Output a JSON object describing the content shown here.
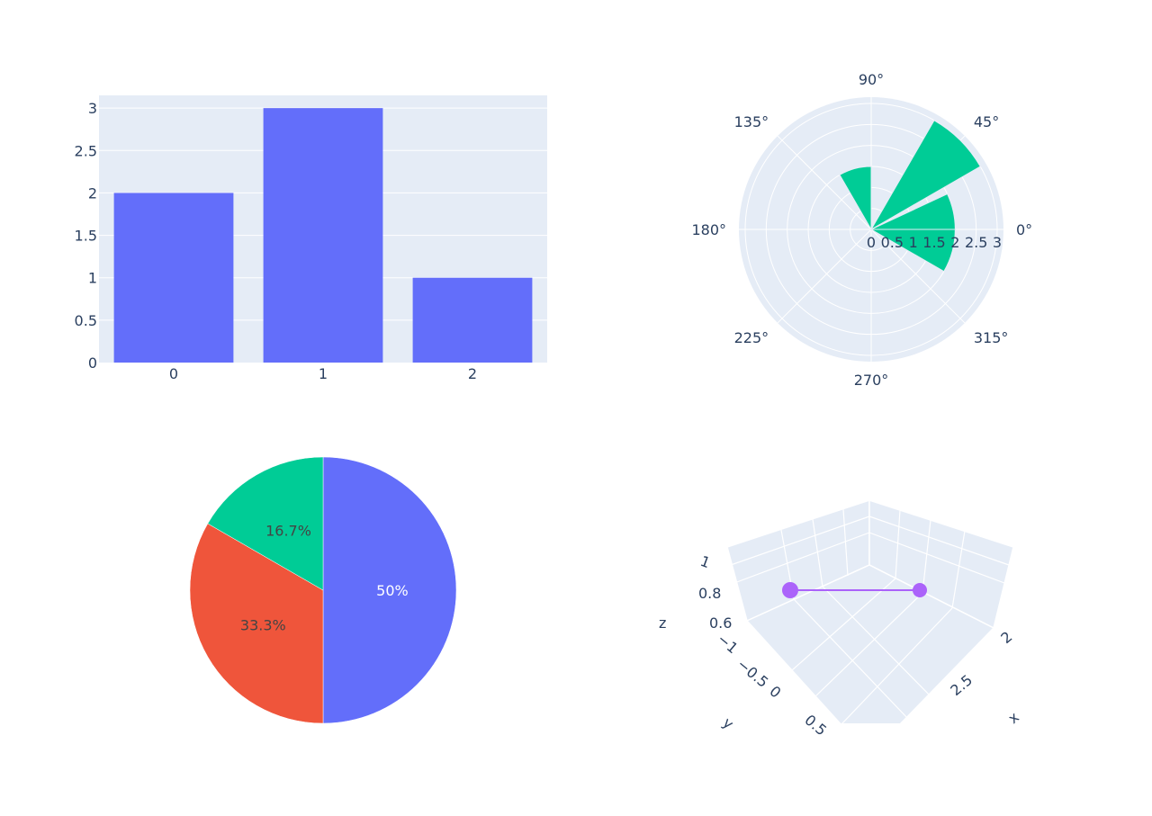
{
  "chart_data": [
    {
      "type": "bar",
      "categories": [
        "0",
        "1",
        "2"
      ],
      "values": [
        2,
        3,
        1
      ],
      "ylim": [
        0,
        3.15
      ],
      "yticks": [
        0,
        0.5,
        1,
        1.5,
        2,
        2.5,
        3
      ],
      "ytick_labels": [
        "0",
        "0.5",
        "1",
        "1.5",
        "2",
        "2.5",
        "3"
      ],
      "grid": true,
      "color": "#636efa"
    },
    {
      "type": "barpolar",
      "r": [
        3,
        2,
        1.5,
        2
      ],
      "theta": [
        45,
        10,
        105,
        345
      ],
      "width_deg": 30,
      "radial_range": [
        0,
        3
      ],
      "radial_ticks": [
        "0",
        "0.5",
        "1",
        "1.5",
        "2",
        "2.5",
        "3"
      ],
      "angular_ticks": [
        "0°",
        "45°",
        "90°",
        "135°",
        "180°",
        "225°",
        "270°",
        "315°"
      ],
      "color": "#00cc96"
    },
    {
      "type": "pie",
      "labels": [
        "50%",
        "33.3%",
        "16.7%"
      ],
      "values": [
        3,
        2,
        1
      ],
      "colors": [
        "#636efa",
        "#ef553b",
        "#00cc96"
      ]
    },
    {
      "type": "scatter3d",
      "mode": "lines+markers",
      "x": [
        1,
        3
      ],
      "y": [
        0,
        0
      ],
      "z": [
        0.8,
        0.8
      ],
      "xlabel": "x",
      "ylabel": "y",
      "zlabel": "z",
      "x_ticks": [
        "2",
        "2.5"
      ],
      "y_ticks": [
        "−1",
        "−0.5",
        "0",
        "0.5"
      ],
      "z_ticks": [
        "0.6",
        "0.8",
        "1"
      ],
      "color": "#ab63fa"
    }
  ]
}
